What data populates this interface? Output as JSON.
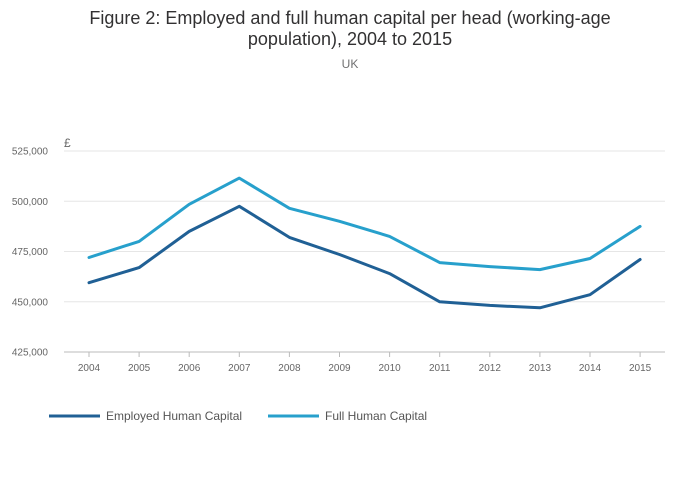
{
  "chart_data": {
    "type": "line",
    "title_line1": "Figure 2: Employed and full human capital per head (working-age",
    "title_line2": "population), 2004 to 2015",
    "subtitle": "UK",
    "y_unit": "£",
    "xlabel": "",
    "ylabel": "",
    "x": [
      "2004",
      "2005",
      "2006",
      "2007",
      "2008",
      "2009",
      "2010",
      "2011",
      "2012",
      "2013",
      "2014",
      "2015"
    ],
    "ylim": [
      425000,
      525000
    ],
    "yticks": [
      425000,
      450000,
      475000,
      500000,
      525000
    ],
    "ytick_labels": [
      "425,000",
      "450,000",
      "475,000",
      "500,000",
      "525,000"
    ],
    "grid": true,
    "legend_position": "bottom-left",
    "series": [
      {
        "name": "Employed Human Capital",
        "color": "#206095",
        "values": [
          459500,
          467000,
          485000,
          497500,
          482000,
          473500,
          464000,
          450000,
          448200,
          447000,
          453500,
          471000
        ]
      },
      {
        "name": "Full Human Capital",
        "color": "#27a0cc",
        "values": [
          472000,
          480000,
          498500,
          511500,
          496500,
          490000,
          482500,
          469500,
          467500,
          466000,
          471500,
          487500
        ]
      }
    ]
  }
}
